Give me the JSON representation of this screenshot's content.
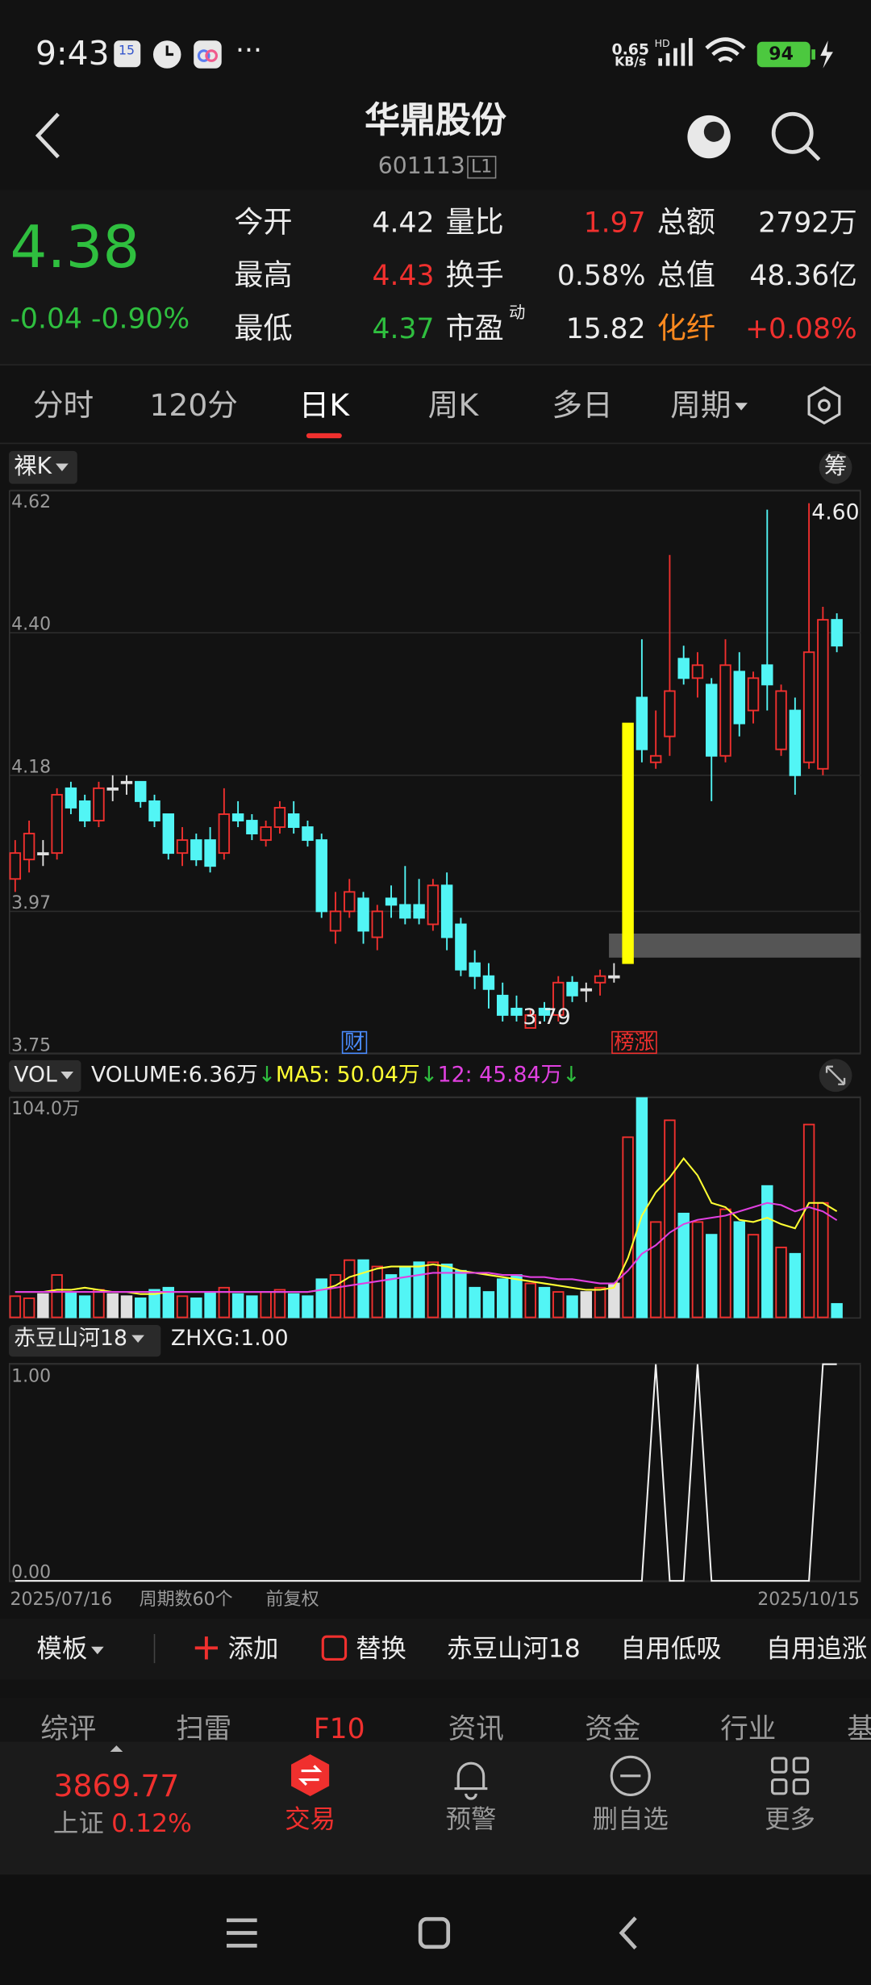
{
  "status": {
    "time": "9:43",
    "calendar": "15",
    "net": "0.65",
    "net_unit": "KB/s",
    "network": "HD",
    "battery": "94"
  },
  "header": {
    "title": "华鼎股份",
    "code": "601113",
    "badge": "L1"
  },
  "quote": {
    "price": "4.38",
    "change": "-0.04",
    "change_pct": "-0.90%",
    "fields": [
      {
        "label": "今开",
        "value": "4.42"
      },
      {
        "label": "量比",
        "value": "1.97"
      },
      {
        "label": "总额",
        "value": "2792万"
      },
      {
        "label": "最高",
        "value": "4.43"
      },
      {
        "label": "换手",
        "value": "0.58%"
      },
      {
        "label": "总值",
        "value": "48.36亿"
      },
      {
        "label": "最低",
        "value": "4.37"
      },
      {
        "label": "市盈",
        "value": "15.82",
        "sup": "动"
      },
      {
        "label": "化纤",
        "value": "+0.08%"
      }
    ]
  },
  "period_tabs": {
    "items": [
      "分时",
      "120分",
      "日K",
      "周K",
      "多日",
      "周期"
    ],
    "active": 2
  },
  "chart_data": [
    {
      "type": "candlestick",
      "selector": "裸K",
      "chip": "筹",
      "ylim": [
        3.75,
        4.62
      ],
      "yticks": [
        4.62,
        {
          "value": 4.4,
          "label": "4.40"
        },
        4.18,
        3.97,
        3.75
      ],
      "grid": true,
      "up_color": "#f0302e",
      "down_color": "#52f5f5",
      "hollow_up": true,
      "high_label": "4.60",
      "low_label": "3.79",
      "annotations": [
        "财",
        "榜涨"
      ],
      "open": [
        4.02,
        4.05,
        4.06,
        4.06,
        4.16,
        4.14,
        4.11,
        4.16,
        4.17,
        4.17,
        4.14,
        4.12,
        4.06,
        4.08,
        4.08,
        4.06,
        4.12,
        4.11,
        4.08,
        4.1,
        4.12,
        4.1,
        4.08,
        3.94,
        3.97,
        3.99,
        3.93,
        3.99,
        3.98,
        3.98,
        3.95,
        4.01,
        3.95,
        3.89,
        3.87,
        3.84,
        3.82,
        3.79,
        3.82,
        3.81,
        3.86,
        3.85,
        3.86,
        3.87,
        3.89,
        4.3,
        4.2,
        4.24,
        4.36,
        4.33,
        4.32,
        4.21,
        4.34,
        4.28,
        4.35,
        4.22,
        4.28,
        4.2,
        4.19,
        4.42
      ],
      "high": [
        4.08,
        4.11,
        4.08,
        4.16,
        4.17,
        4.15,
        4.17,
        4.18,
        4.18,
        4.17,
        4.15,
        4.12,
        4.1,
        4.09,
        4.1,
        4.16,
        4.14,
        4.12,
        4.11,
        4.14,
        4.14,
        4.11,
        4.09,
        4.0,
        4.02,
        4.0,
        3.98,
        4.01,
        4.04,
        4.02,
        4.02,
        4.03,
        3.96,
        3.91,
        3.89,
        3.86,
        3.84,
        3.82,
        3.83,
        3.87,
        3.87,
        3.86,
        3.88,
        3.89,
        4.26,
        4.39,
        4.28,
        4.52,
        4.38,
        4.37,
        4.33,
        4.39,
        4.37,
        4.34,
        4.59,
        4.32,
        4.3,
        4.6,
        4.44,
        4.43
      ],
      "low": [
        4.0,
        4.03,
        4.04,
        4.05,
        4.12,
        4.1,
        4.1,
        4.14,
        4.15,
        4.13,
        4.1,
        4.05,
        4.04,
        4.04,
        4.03,
        4.05,
        4.1,
        4.08,
        4.07,
        4.09,
        4.09,
        4.07,
        3.96,
        3.92,
        3.96,
        3.92,
        3.91,
        3.96,
        3.95,
        3.95,
        3.94,
        3.91,
        3.87,
        3.85,
        3.82,
        3.8,
        3.8,
        3.79,
        3.8,
        3.8,
        3.83,
        3.83,
        3.84,
        3.86,
        3.89,
        4.2,
        4.19,
        4.21,
        4.32,
        4.3,
        4.14,
        4.2,
        4.24,
        4.26,
        4.28,
        4.21,
        4.15,
        4.19,
        4.18,
        4.37
      ],
      "close": [
        4.06,
        4.09,
        4.06,
        4.15,
        4.13,
        4.11,
        4.16,
        4.16,
        4.17,
        4.14,
        4.11,
        4.06,
        4.08,
        4.05,
        4.04,
        4.12,
        4.11,
        4.09,
        4.1,
        4.13,
        4.1,
        4.08,
        3.97,
        3.97,
        4.0,
        3.94,
        3.97,
        3.98,
        3.96,
        3.96,
        4.01,
        3.93,
        3.88,
        3.87,
        3.85,
        3.81,
        3.81,
        3.81,
        3.81,
        3.86,
        3.84,
        3.85,
        3.87,
        3.87,
        4.26,
        4.22,
        4.21,
        4.31,
        4.33,
        4.35,
        4.21,
        4.35,
        4.26,
        4.33,
        4.32,
        4.31,
        4.18,
        4.37,
        4.42,
        4.38
      ],
      "colors": [
        "#f0302e",
        "#f0302e",
        "#e0e0e0",
        "#f0302e",
        "#52f5f5",
        "#52f5f5",
        "#f0302e",
        "#e0e0e0",
        "#e0e0e0",
        "#52f5f5",
        "#52f5f5",
        "#52f5f5",
        "#f0302e",
        "#52f5f5",
        "#52f5f5",
        "#f0302e",
        "#52f5f5",
        "#52f5f5",
        "#f0302e",
        "#f0302e",
        "#52f5f5",
        "#52f5f5",
        "#52f5f5",
        "#f0302e",
        "#f0302e",
        "#52f5f5",
        "#f0302e",
        "#52f5f5",
        "#52f5f5",
        "#52f5f5",
        "#f0302e",
        "#52f5f5",
        "#52f5f5",
        "#52f5f5",
        "#52f5f5",
        "#52f5f5",
        "#52f5f5",
        "#f0302e",
        "#52f5f5",
        "#f0302e",
        "#52f5f5",
        "#e0e0e0",
        "#f0302e",
        "#e0e0e0",
        "#ffff00",
        "#52f5f5",
        "#f0302e",
        "#f0302e",
        "#52f5f5",
        "#f0302e",
        "#52f5f5",
        "#f0302e",
        "#52f5f5",
        "#f0302e",
        "#52f5f5",
        "#f0302e",
        "#52f5f5",
        "#f0302e",
        "#f0302e",
        "#52f5f5"
      ]
    },
    {
      "type": "bar",
      "selector": "VOL",
      "ylim": [
        0,
        104
      ],
      "yticks": [
        {
          "value": 104,
          "label": "104.0万"
        }
      ],
      "legend": [
        {
          "text": "VOLUME:6.36万",
          "arrow": "↓",
          "color": "#ececec"
        },
        {
          "text": "MA5: 50.04万",
          "arrow": "↓",
          "color": "#ffff33"
        },
        {
          "text": "12: 45.84万",
          "arrow": "↓",
          "color": "#e040e0"
        }
      ],
      "values": [
        10,
        9,
        11,
        20,
        12,
        10,
        13,
        11,
        10,
        9,
        13,
        14,
        10,
        9,
        12,
        14,
        11,
        10,
        12,
        13,
        11,
        10,
        18,
        20,
        27,
        27,
        24,
        20,
        24,
        26,
        26,
        25,
        22,
        14,
        12,
        18,
        20,
        16,
        14,
        12,
        10,
        12,
        14,
        16,
        85,
        103.5,
        45,
        93,
        49,
        45,
        39,
        51,
        45,
        39,
        62,
        33,
        30,
        91,
        54,
        6.36
      ],
      "series": [
        {
          "name": "MA5",
          "color": "#ffff33",
          "values": [
            12,
            12,
            12,
            13,
            13,
            14,
            13,
            12,
            12,
            11,
            11,
            12,
            12,
            12,
            12,
            12,
            12,
            12,
            12,
            12,
            12,
            12,
            13,
            15,
            19,
            21,
            23,
            24,
            24,
            24,
            25,
            24,
            22,
            21,
            20,
            19,
            18,
            17,
            16,
            15,
            14,
            13,
            13,
            14,
            28,
            48,
            59,
            66,
            75,
            67,
            54,
            52,
            46,
            45,
            47,
            44,
            42,
            54,
            54,
            50.04
          ]
        },
        {
          "name": "12",
          "color": "#e040e0",
          "values": [
            12,
            12,
            12,
            12,
            12,
            12,
            12,
            12,
            12,
            12,
            12,
            12,
            12,
            12,
            12,
            12,
            12,
            12,
            12,
            12,
            12,
            12,
            13,
            14,
            15,
            16,
            17,
            18,
            19,
            20,
            21,
            21,
            21,
            21,
            21,
            20,
            20,
            19,
            19,
            18,
            18,
            17,
            16,
            16,
            22,
            30,
            34,
            40,
            44,
            46,
            47,
            48,
            50,
            52,
            54,
            53,
            50,
            52,
            50,
            45.84
          ]
        }
      ]
    },
    {
      "type": "line",
      "selector": "赤豆山河18",
      "legend": "ZHXG:1.00",
      "color": "#f2f2f2",
      "ylim": [
        0,
        1
      ],
      "yticks": [
        {
          "value": 1,
          "label": "1.00"
        },
        {
          "value": 0,
          "label": "0.00"
        }
      ],
      "values": [
        0,
        0,
        0,
        0,
        0,
        0,
        0,
        0,
        0,
        0,
        0,
        0,
        0,
        0,
        0,
        0,
        0,
        0,
        0,
        0,
        0,
        0,
        0,
        0,
        0,
        0,
        0,
        0,
        0,
        0,
        0,
        0,
        0,
        0,
        0,
        0,
        0,
        0,
        0,
        0,
        0,
        0,
        0,
        0,
        0,
        0,
        1,
        0,
        0,
        1,
        0,
        0,
        0,
        0,
        0,
        0,
        0,
        0,
        1,
        1
      ]
    }
  ],
  "chart_footer": {
    "start": "2025/07/16",
    "count": "周期数60个",
    "adjust": "前复权",
    "end": "2025/10/15"
  },
  "toolbar": [
    "模板",
    "添加",
    "替换",
    "赤豆山河18",
    "自用低吸",
    "自用追涨"
  ],
  "sub_tabs": [
    "综评",
    "扫雷",
    "F10",
    "资讯",
    "资金",
    "行业",
    "基"
  ],
  "bottom_nav": {
    "index_value": "3869.77",
    "index_name": "上证",
    "index_pct": "0.12%",
    "items": [
      "交易",
      "预警",
      "删自选",
      "更多"
    ]
  }
}
